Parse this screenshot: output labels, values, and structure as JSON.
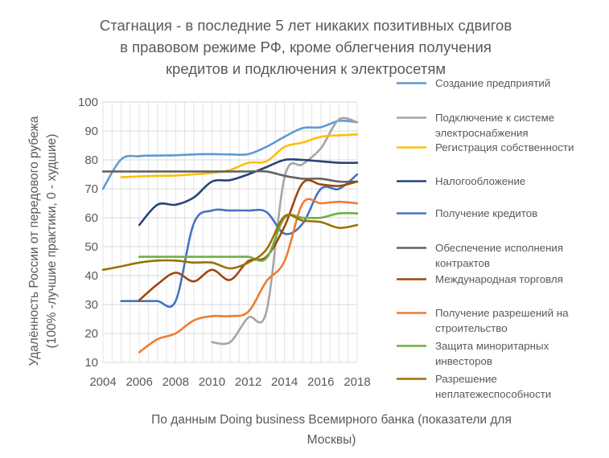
{
  "chart_data": {
    "type": "line",
    "title_lines": [
      "Стагнация - в последние 5 лет никаких позитивных сдвигов",
      "в правовом режиме РФ, кроме облегчения получения",
      "кредитов и подключения к электросетям"
    ],
    "xlabel_lines": [
      "По данным Doing business Всемирного банка (показатели для",
      "Москвы)"
    ],
    "ylabel_lines": [
      "Удалённость России от  передового рубежа",
      "(100% -лучшие практики, 0 - худшие)"
    ],
    "xlim": [
      2004,
      2018
    ],
    "ylim": [
      10,
      100
    ],
    "x_ticks": [
      "2004",
      "2006",
      "2008",
      "2010",
      "2012",
      "2014",
      "2016",
      "2018"
    ],
    "y_ticks": [
      "10",
      "20",
      "30",
      "40",
      "50",
      "60",
      "70",
      "80",
      "90",
      "100"
    ],
    "grid": true,
    "legend_position": "right",
    "series": [
      {
        "name": "Создание предприятий",
        "color": "#5B9BD5",
        "x": [
          2004,
          2005,
          2006,
          2007,
          2008,
          2009,
          2010,
          2011,
          2012,
          2013,
          2014,
          2015,
          2016,
          2017,
          2018
        ],
        "y": [
          70,
          80.2,
          81.3,
          81.5,
          81.6,
          81.9,
          82,
          81.9,
          82,
          84.5,
          88,
          91,
          91.3,
          93.5,
          93
        ]
      },
      {
        "name": "Подключение к системе электроснабжения",
        "color": "#A5A5A5",
        "x": [
          2010,
          2011,
          2012,
          2013,
          2014,
          2015,
          2016,
          2017,
          2018
        ],
        "y": [
          17,
          17,
          25.5,
          27.5,
          74,
          78.5,
          84,
          94,
          93
        ]
      },
      {
        "name": "Регистрация собственности",
        "color": "#FFC000",
        "x": [
          2005,
          2006,
          2007,
          2008,
          2009,
          2010,
          2011,
          2012,
          2013,
          2014,
          2015,
          2016,
          2017,
          2018
        ],
        "y": [
          74,
          74.3,
          74.5,
          74.6,
          75,
          75.5,
          76.5,
          79,
          79.5,
          84.5,
          86,
          88,
          88.5,
          88.8
        ]
      },
      {
        "name": "Налогообложение",
        "color": "#264478",
        "x": [
          2006,
          2007,
          2008,
          2009,
          2010,
          2011,
          2012,
          2013,
          2014,
          2015,
          2016,
          2017,
          2018
        ],
        "y": [
          57.5,
          64.5,
          64.5,
          67,
          72.5,
          73,
          75,
          77.5,
          80,
          80,
          79.5,
          79,
          79
        ]
      },
      {
        "name": "Получение кредитов",
        "color": "#4472C4",
        "x": [
          2005,
          2006,
          2007,
          2008,
          2009,
          2010,
          2011,
          2012,
          2013,
          2014,
          2015,
          2016,
          2017,
          2018
        ],
        "y": [
          31.2,
          31.2,
          31.2,
          31.2,
          58,
          62.5,
          62.5,
          62.5,
          62,
          54.5,
          58,
          70,
          70,
          75
        ]
      },
      {
        "name": "Обеспечение исполнения контрактов",
        "color": "#636363",
        "x": [
          2004,
          2005,
          2006,
          2007,
          2008,
          2009,
          2010,
          2011,
          2012,
          2013,
          2014,
          2015,
          2016,
          2017,
          2018
        ],
        "y": [
          76,
          76,
          76,
          76,
          76,
          76,
          76,
          76,
          76,
          76,
          74.5,
          73.5,
          73.5,
          72.5,
          72.5
        ]
      },
      {
        "name": "Международная торговля",
        "color": "#9E480E",
        "x": [
          2006,
          2007,
          2008,
          2009,
          2010,
          2011,
          2012,
          2013,
          2014,
          2015,
          2016,
          2017,
          2018
        ],
        "y": [
          31.5,
          37,
          41,
          38,
          42,
          38.5,
          45,
          46.5,
          57,
          72,
          71.5,
          71,
          72.5
        ]
      },
      {
        "name": "Получение разрешений на строительство",
        "color": "#ED7D31",
        "x": [
          2006,
          2007,
          2008,
          2009,
          2010,
          2011,
          2012,
          2013,
          2014,
          2015,
          2016,
          2017,
          2018
        ],
        "y": [
          13.5,
          18,
          20,
          24.5,
          26,
          26,
          27.5,
          38,
          45,
          65,
          65,
          65.5,
          65
        ]
      },
      {
        "name": "Защита миноритарных инвесторов",
        "color": "#70AD47",
        "x": [
          2006,
          2007,
          2008,
          2009,
          2010,
          2011,
          2012,
          2013,
          2014,
          2015,
          2016,
          2017,
          2018
        ],
        "y": [
          46.5,
          46.5,
          46.5,
          46.5,
          46.5,
          46.5,
          46.5,
          46,
          60,
          60,
          60,
          61.5,
          61.5
        ]
      },
      {
        "name": "Разрешение неплатежеспособности",
        "color": "#997300",
        "x": [
          2004,
          2005,
          2006,
          2007,
          2008,
          2009,
          2010,
          2011,
          2012,
          2013,
          2014,
          2015,
          2016,
          2017,
          2018
        ],
        "y": [
          42,
          43.2,
          44.5,
          45.2,
          45.2,
          44.5,
          44.5,
          42.5,
          44.5,
          49,
          60.5,
          59,
          58.5,
          56.5,
          57.5
        ]
      }
    ],
    "legend_entries": [
      {
        "lines": [
          "Создание предприятий"
        ],
        "color": "#5B9BD5"
      },
      {
        "lines": [
          "Подключение к системе",
          "электроснабжения"
        ],
        "color": "#A5A5A5"
      },
      {
        "lines": [
          "Регистрация собственности"
        ],
        "color": "#FFC000"
      },
      {
        "lines": [
          "Налогообложение"
        ],
        "color": "#264478"
      },
      {
        "lines": [
          "Получение кредитов"
        ],
        "color": "#4472C4"
      },
      {
        "lines": [
          "Обеспечение исполнения",
          "контрактов"
        ],
        "color": "#636363"
      },
      {
        "lines": [
          "Международная торговля"
        ],
        "color": "#9E480E"
      },
      {
        "lines": [
          "Получение разрешений на",
          "строительство"
        ],
        "color": "#ED7D31"
      },
      {
        "lines": [
          "Защита миноритарных",
          "инвесторов"
        ],
        "color": "#70AD47"
      },
      {
        "lines": [
          "Разрешение",
          "неплатежеспособности"
        ],
        "color": "#997300"
      }
    ]
  }
}
